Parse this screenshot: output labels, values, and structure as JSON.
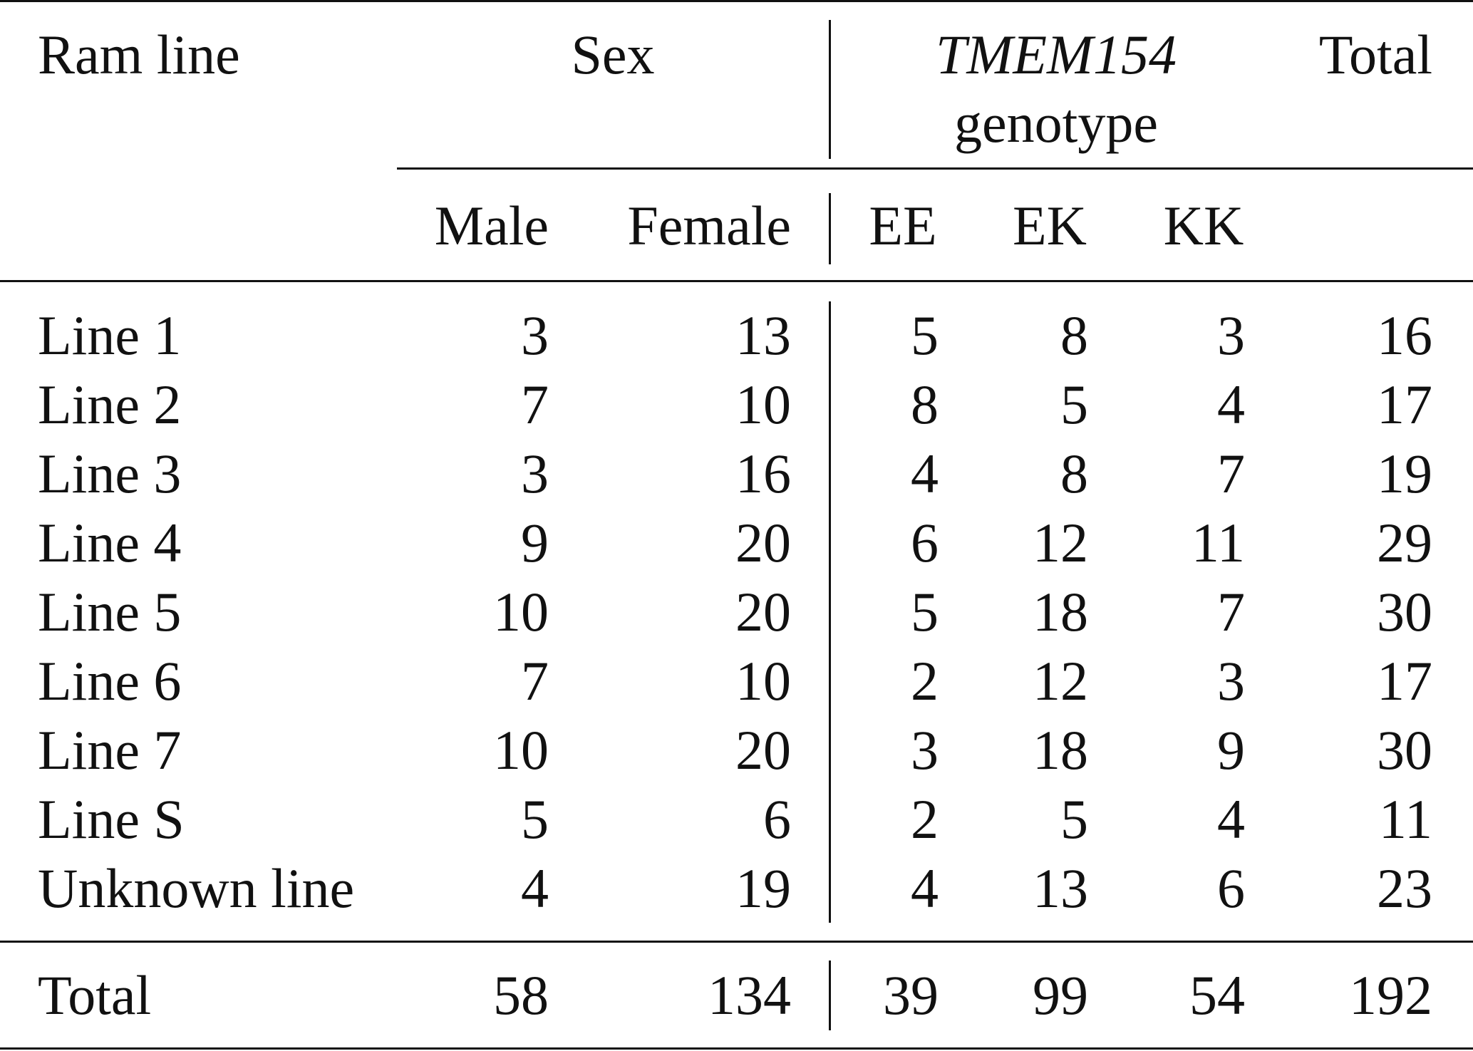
{
  "header": {
    "stub": "Ram line",
    "sex_group": "Sex",
    "genotype_group_italic": "TMEM154",
    "genotype_group_rest": "genotype",
    "total": "Total",
    "subcolumns": [
      "Male",
      "Female",
      "EE",
      "EK",
      "KK"
    ]
  },
  "rows": [
    {
      "label": "Line 1",
      "values": [
        "3",
        "13",
        "5",
        "8",
        "3",
        "16"
      ]
    },
    {
      "label": "Line 2",
      "values": [
        "7",
        "10",
        "8",
        "5",
        "4",
        "17"
      ]
    },
    {
      "label": "Line 3",
      "values": [
        "3",
        "16",
        "4",
        "8",
        "7",
        "19"
      ]
    },
    {
      "label": "Line 4",
      "values": [
        "9",
        "20",
        "6",
        "12",
        "11",
        "29"
      ]
    },
    {
      "label": "Line 5",
      "values": [
        "10",
        "20",
        "5",
        "18",
        "7",
        "30"
      ]
    },
    {
      "label": "Line 6",
      "values": [
        "7",
        "10",
        "2",
        "12",
        "3",
        "17"
      ]
    },
    {
      "label": "Line 7",
      "values": [
        "10",
        "20",
        "3",
        "18",
        "9",
        "30"
      ]
    },
    {
      "label": "Line S",
      "values": [
        "5",
        "6",
        "2",
        "5",
        "4",
        "11"
      ]
    },
    {
      "label": "Unknown line",
      "values": [
        "4",
        "19",
        "4",
        "13",
        "6",
        "23"
      ]
    }
  ],
  "total_row": {
    "label": "Total",
    "values": [
      "58",
      "134",
      "39",
      "99",
      "54",
      "192"
    ]
  }
}
